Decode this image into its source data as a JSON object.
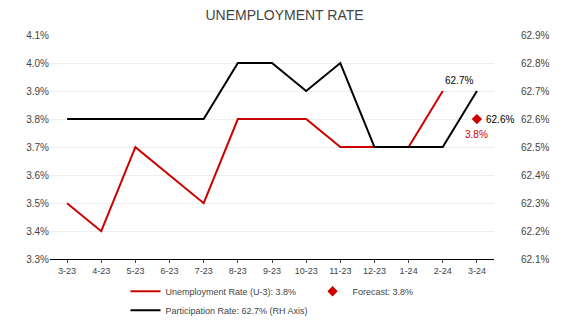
{
  "chart_data": {
    "type": "line",
    "title": "UNEMPLOYMENT RATE",
    "categories": [
      "3-23",
      "4-23",
      "5-23",
      "6-23",
      "7-23",
      "8-23",
      "9-23",
      "10-23",
      "11-23",
      "12-23",
      "1-24",
      "2-24",
      "3-24"
    ],
    "series": [
      {
        "name": "Unemployment Rate (U-3): 3.8%",
        "color": "#cc0000",
        "line_style": "solid",
        "values": [
          3.5,
          3.4,
          3.7,
          3.6,
          3.5,
          3.8,
          3.8,
          3.8,
          3.7,
          3.7,
          3.7,
          3.9,
          null
        ]
      },
      {
        "name": "Forecast: 3.8%",
        "color": "#cc0000",
        "marker": "diamond",
        "line_style": "none",
        "values": [
          null,
          null,
          null,
          null,
          null,
          null,
          null,
          null,
          null,
          null,
          null,
          null,
          3.8
        ]
      },
      {
        "name": "Participation Rate: 62.7% (RH Axis)",
        "color": "#000000",
        "line_style": "solid",
        "axis": "y2",
        "values": [
          62.6,
          62.6,
          62.6,
          62.6,
          62.6,
          62.8,
          62.8,
          62.7,
          62.8,
          62.5,
          62.5,
          62.5,
          62.7
        ]
      }
    ],
    "ylim": [
      3.3,
      4.1
    ],
    "yticks": [
      {
        "value": 3.3,
        "label": "3.3%"
      },
      {
        "value": 3.4,
        "label": "3.4%"
      },
      {
        "value": 3.5,
        "label": "3.5%"
      },
      {
        "value": 3.6,
        "label": "3.6%"
      },
      {
        "value": 3.7,
        "label": "3.7%"
      },
      {
        "value": 3.8,
        "label": "3.8%"
      },
      {
        "value": 3.9,
        "label": "3.9%"
      },
      {
        "value": 4.0,
        "label": "4.0%"
      },
      {
        "value": 4.1,
        "label": "4.1%"
      }
    ],
    "y2lim": [
      62.1,
      62.9
    ],
    "y2ticks": [
      {
        "value": 62.1,
        "label": "62.1%"
      },
      {
        "value": 62.2,
        "label": "62.2%"
      },
      {
        "value": 62.3,
        "label": "62.3%"
      },
      {
        "value": 62.4,
        "label": "62.4%"
      },
      {
        "value": 62.5,
        "label": "62.5%"
      },
      {
        "value": 62.6,
        "label": "62.6%"
      },
      {
        "value": 62.7,
        "label": "62.7%"
      },
      {
        "value": 62.8,
        "label": "62.8%"
      },
      {
        "value": 62.9,
        "label": "62.9%"
      }
    ],
    "grid": true,
    "legend": "bottom",
    "annotations": [
      {
        "text": "62.7%",
        "x": "3-24",
        "y": 62.7,
        "axis": "y2"
      },
      {
        "text": "3.8%",
        "x": "3-24",
        "y": 3.8,
        "color": "#cc0000"
      },
      {
        "text": "62.6%",
        "x": "3-24",
        "y": 62.6,
        "axis": "y2"
      }
    ]
  }
}
